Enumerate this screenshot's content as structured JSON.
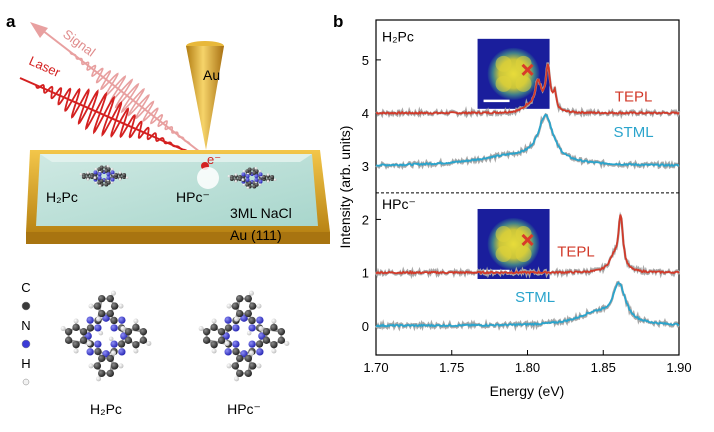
{
  "panels": {
    "a": {
      "label": "a",
      "beam_labels": {
        "signal": "Signal",
        "laser": "Laser"
      },
      "tip_label": "Au",
      "electron_label": "e⁻",
      "molecule_left": "H₂Pc",
      "molecule_right": "HPc⁻",
      "layer_label": "3ML NaCl",
      "substrate_label": "Au (111)",
      "atom_legend": [
        {
          "symbol": "C",
          "color": "#3a3a3a"
        },
        {
          "symbol": "N",
          "color": "#3b3bd6"
        },
        {
          "symbol": "H",
          "color": "#f2f2f2"
        }
      ],
      "structure_left": "H₂Pc",
      "structure_right": "HPc⁻"
    },
    "b": {
      "label": "b"
    }
  },
  "chart_data": {
    "type": "line",
    "xlabel": "Energy (eV)",
    "ylabel": "Intensity (arb. units)",
    "xlim": [
      1.7,
      1.9
    ],
    "ylim": [
      -0.55,
      5.75
    ],
    "xticks": [
      "1.70",
      "1.75",
      "1.80",
      "1.85",
      "1.90"
    ],
    "yticks": [
      "0",
      "1",
      "2",
      "3",
      "4",
      "5"
    ],
    "divider_y": 2.5,
    "section_labels": [
      {
        "text": "H₂Pc",
        "x": 1.7,
        "y": 5.35
      },
      {
        "text": "HPc⁻",
        "x": 1.7,
        "y": 2.2
      }
    ],
    "series": [
      {
        "name": "TEPL",
        "color": "#d23a2a",
        "offset": 4.0,
        "peaks": [
          [
            1.807,
            0.55,
            0.0025
          ],
          [
            1.8135,
            0.82,
            0.0018
          ],
          [
            1.818,
            0.3,
            0.0012
          ],
          [
            1.8005,
            0.1,
            0.004
          ]
        ],
        "label_pos": [
          1.87,
          4.22
        ]
      },
      {
        "name": "STML",
        "color": "#2aa4cc",
        "offset": 3.0,
        "peaks": [
          [
            1.812,
            0.85,
            0.006
          ],
          [
            1.79,
            0.18,
            0.03
          ]
        ],
        "label_pos": [
          1.87,
          3.55
        ]
      },
      {
        "name": "TEPL",
        "color": "#d23a2a",
        "offset": 1.0,
        "peaks": [
          [
            1.8615,
            1.0,
            0.0018
          ],
          [
            1.857,
            0.25,
            0.004
          ]
        ],
        "label_pos": [
          1.832,
          1.3
        ]
      },
      {
        "name": "STML",
        "color": "#2aa4cc",
        "offset": 0.0,
        "peaks": [
          [
            1.8605,
            0.7,
            0.005
          ],
          [
            1.845,
            0.22,
            0.015
          ]
        ],
        "label_pos": [
          1.805,
          0.45
        ]
      }
    ],
    "markers": [
      {
        "x": 1.804,
        "y": 4.7
      },
      {
        "x": 1.804,
        "y": 1.5
      }
    ]
  }
}
